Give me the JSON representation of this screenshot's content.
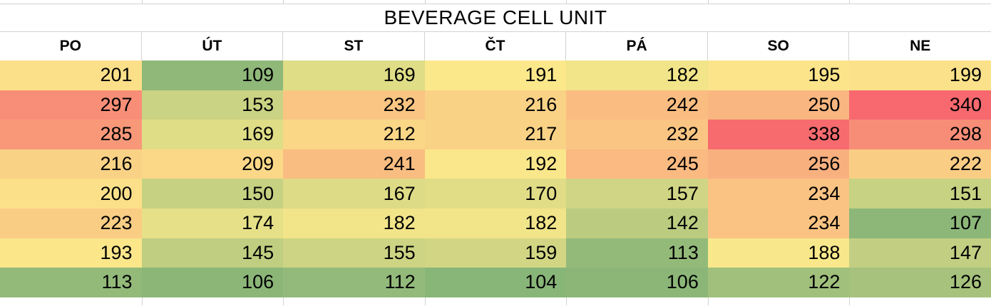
{
  "title": "BEVERAGE CELL UNIT",
  "table": {
    "headers": [
      "PO",
      "ÚT",
      "ST",
      "ČT",
      "PÁ",
      "SO",
      "NE"
    ],
    "rows": [
      [
        201,
        109,
        169,
        191,
        182,
        195,
        199
      ],
      [
        297,
        153,
        232,
        216,
        242,
        250,
        340
      ],
      [
        285,
        169,
        212,
        217,
        232,
        338,
        298
      ],
      [
        216,
        209,
        241,
        192,
        245,
        256,
        222
      ],
      [
        200,
        150,
        167,
        170,
        157,
        234,
        151
      ],
      [
        223,
        174,
        182,
        182,
        142,
        234,
        107
      ],
      [
        193,
        145,
        155,
        159,
        113,
        188,
        147
      ],
      [
        113,
        106,
        112,
        104,
        106,
        122,
        126
      ]
    ]
  },
  "heatmap": {
    "type": "3-color-scale",
    "min_value": 104,
    "mid_value": 189.5,
    "max_value": 340,
    "min_color": "#88B578",
    "mid_color": "#FBE98B",
    "max_color": "#F7696F"
  },
  "grid_color": "#d2d2d2",
  "column_count": 7
}
